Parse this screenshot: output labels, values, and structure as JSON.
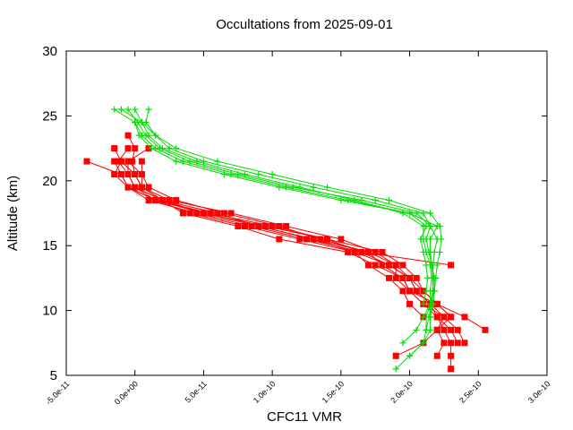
{
  "chart_data": {
    "type": "line",
    "title": "Occultations from 2025-09-01",
    "xlabel": "CFC11 VMR",
    "ylabel": "Altitude (km)",
    "xlim": [
      -5e-11,
      3e-10
    ],
    "ylim": [
      5,
      30
    ],
    "xticks": [
      -5e-11,
      0,
      5e-11,
      1e-10,
      1.5e-10,
      2e-10,
      2.5e-10,
      3e-10
    ],
    "xtick_labels": [
      "-5.0e-11",
      "0.0e+00",
      "5.0e-11",
      "1.0e-10",
      "1.5e-10",
      "2.0e-10",
      "2.5e-10",
      "3.0e-10"
    ],
    "yticks": [
      5,
      10,
      15,
      20,
      25,
      30
    ],
    "ytick_labels": [
      "5",
      "10",
      "15",
      "20",
      "25",
      "30"
    ],
    "grid": false,
    "colors": {
      "red": "#ff0000",
      "green": "#00dd00"
    },
    "series": [
      {
        "color": "red",
        "marker": "square",
        "points": [
          [
            2.3e-10,
            5.5
          ],
          [
            2.3e-10,
            6.5
          ],
          [
            2.3e-10,
            7.5
          ],
          [
            2.25e-10,
            8.5
          ],
          [
            2.2e-10,
            9.5
          ],
          [
            2.15e-10,
            10.5
          ],
          [
            2.05e-10,
            11.5
          ],
          [
            2e-10,
            12.5
          ],
          [
            1.9e-10,
            13.5
          ],
          [
            1.75e-10,
            14.5
          ],
          [
            1.5e-10,
            15.5
          ],
          [
            1.1e-10,
            16.5
          ],
          [
            7e-11,
            17.5
          ],
          [
            2.5e-11,
            18.5
          ],
          [
            5e-12,
            19.5
          ],
          [
            0,
            20.5
          ],
          [
            -2e-12,
            21.5
          ],
          [
            0,
            22.5
          ],
          [
            -5e-12,
            23.5
          ]
        ]
      },
      {
        "color": "red",
        "marker": "square",
        "points": [
          [
            2.35e-10,
            7.5
          ],
          [
            2.3e-10,
            8.5
          ],
          [
            2.2e-10,
            9.5
          ],
          [
            2.1e-10,
            10.5
          ],
          [
            2e-10,
            11.5
          ],
          [
            1.95e-10,
            12.5
          ],
          [
            1.8e-10,
            13.5
          ],
          [
            1.7e-10,
            14.5
          ],
          [
            1.3e-10,
            15.5
          ],
          [
            9e-11,
            16.5
          ],
          [
            6e-11,
            17.5
          ],
          [
            2e-11,
            18.5
          ],
          [
            5e-12,
            19.5
          ],
          [
            0,
            20.5
          ],
          [
            -1e-11,
            21.5
          ]
        ]
      },
      {
        "color": "red",
        "marker": "square",
        "points": [
          [
            1.9e-10,
            6.5
          ],
          [
            2.1e-10,
            7.5
          ],
          [
            2.2e-10,
            8.5
          ],
          [
            2.3e-10,
            9.5
          ],
          [
            2.2e-10,
            10.5
          ],
          [
            2.1e-10,
            11.5
          ],
          [
            2e-10,
            12.5
          ],
          [
            1.85e-10,
            13.5
          ],
          [
            1.6e-10,
            14.5
          ],
          [
            1.2e-10,
            15.5
          ],
          [
            8e-11,
            16.5
          ],
          [
            4e-11,
            17.5
          ],
          [
            1.5e-11,
            18.5
          ],
          [
            0,
            19.5
          ],
          [
            -5e-12,
            20.5
          ],
          [
            -1.2e-11,
            21.5
          ],
          [
            -5e-12,
            22.5
          ]
        ]
      },
      {
        "color": "red",
        "marker": "square",
        "points": [
          [
            2.55e-10,
            8.5
          ],
          [
            2.4e-10,
            9.5
          ],
          [
            2.2e-10,
            10.5
          ],
          [
            2.1e-10,
            11.5
          ],
          [
            2.05e-10,
            12.5
          ],
          [
            1.95e-10,
            13.5
          ],
          [
            1.8e-10,
            14.5
          ],
          [
            1.4e-10,
            15.5
          ],
          [
            1e-10,
            16.5
          ],
          [
            5.5e-11,
            17.5
          ],
          [
            1.5e-11,
            18.5
          ],
          [
            -5e-12,
            19.5
          ],
          [
            -1e-11,
            20.5
          ],
          [
            -1.5e-11,
            21.5
          ]
        ]
      },
      {
        "color": "red",
        "marker": "square",
        "points": [
          [
            2.4e-10,
            7.5
          ],
          [
            2.35e-10,
            8.5
          ],
          [
            2.25e-10,
            9.5
          ],
          [
            2.15e-10,
            10.5
          ],
          [
            2.05e-10,
            11.5
          ],
          [
            2e-10,
            12.5
          ],
          [
            1.85e-10,
            13.5
          ],
          [
            1.65e-10,
            14.5
          ],
          [
            1.25e-10,
            15.5
          ],
          [
            8.5e-11,
            16.5
          ],
          [
            4.5e-11,
            17.5
          ],
          [
            1e-11,
            18.5
          ],
          [
            -5e-12,
            19.5
          ],
          [
            -1e-11,
            20.5
          ],
          [
            -3.5e-11,
            21.5
          ]
        ]
      },
      {
        "color": "red",
        "marker": "square",
        "points": [
          [
            2.2e-10,
            6.5
          ],
          [
            2.25e-10,
            7.5
          ],
          [
            2.2e-10,
            8.5
          ],
          [
            2.25e-10,
            9.5
          ],
          [
            2.1e-10,
            10.5
          ],
          [
            2e-10,
            11.5
          ],
          [
            1.95e-10,
            12.5
          ],
          [
            1.75e-10,
            13.5
          ],
          [
            1.55e-10,
            14.5
          ],
          [
            1.05e-10,
            15.5
          ],
          [
            7.5e-11,
            16.5
          ],
          [
            3.5e-11,
            17.5
          ],
          [
            2e-11,
            18.5
          ],
          [
            5e-12,
            19.5
          ],
          [
            5e-12,
            20.5
          ],
          [
            -5e-12,
            21.5
          ],
          [
            1e-11,
            22.5
          ]
        ]
      },
      {
        "color": "red",
        "marker": "square",
        "points": [
          [
            2.3e-10,
            13.5
          ],
          [
            1.65e-10,
            14.5
          ],
          [
            1.4e-10,
            15.5
          ],
          [
            9.5e-11,
            16.5
          ],
          [
            5e-11,
            17.5
          ],
          [
            1.5e-11,
            18.5
          ],
          [
            -5e-12,
            19.5
          ],
          [
            -1.5e-11,
            20.5
          ],
          [
            -1e-11,
            21.5
          ],
          [
            -1.5e-11,
            22.5
          ]
        ]
      },
      {
        "color": "red",
        "marker": "square",
        "points": [
          [
            2.3e-10,
            9.5
          ],
          [
            2.2e-10,
            10.5
          ],
          [
            2e-10,
            11.5
          ],
          [
            1.9e-10,
            12.5
          ],
          [
            1.9e-10,
            13.5
          ],
          [
            1.7e-10,
            14.5
          ],
          [
            1.35e-10,
            15.5
          ],
          [
            1.05e-10,
            16.5
          ],
          [
            6.5e-11,
            17.5
          ],
          [
            3e-11,
            18.5
          ],
          [
            1e-11,
            19.5
          ],
          [
            5e-12,
            20.5
          ],
          [
            5e-12,
            21.5
          ]
        ]
      },
      {
        "color": "red",
        "marker": "square",
        "points": [
          [
            2.1e-10,
            9.5
          ],
          [
            2e-10,
            10.5
          ],
          [
            1.95e-10,
            11.5
          ],
          [
            1.85e-10,
            12.5
          ],
          [
            1.7e-10,
            13.5
          ],
          [
            1.6e-10,
            14.5
          ],
          [
            1.3e-10,
            15.5
          ],
          [
            9e-11,
            16.5
          ],
          [
            5e-11,
            17.5
          ],
          [
            2e-11,
            18.5
          ],
          [
            0,
            19.5
          ],
          [
            -5e-12,
            20.5
          ],
          [
            -5e-12,
            21.5
          ]
        ]
      },
      {
        "color": "green",
        "marker": "plus",
        "points": [
          [
            1.9e-10,
            5.5
          ],
          [
            2e-10,
            6.5
          ],
          [
            2.1e-10,
            7.5
          ],
          [
            2.15e-10,
            8.5
          ],
          [
            2.15e-10,
            9.5
          ],
          [
            2.15e-10,
            10.5
          ],
          [
            2.18e-10,
            11.5
          ],
          [
            2.18e-10,
            12.5
          ],
          [
            2.16e-10,
            13.5
          ],
          [
            2.15e-10,
            14.5
          ],
          [
            2.15e-10,
            15.5
          ],
          [
            2.2e-10,
            16.5
          ],
          [
            2e-10,
            17.5
          ],
          [
            1.55e-10,
            18.5
          ],
          [
            1.1e-10,
            19.5
          ],
          [
            7e-11,
            20.5
          ],
          [
            3.5e-11,
            21.5
          ],
          [
            1.5e-11,
            22.5
          ],
          [
            5e-12,
            23.5
          ],
          [
            0,
            24.5
          ],
          [
            -1.5e-11,
            25.5
          ]
        ]
      },
      {
        "color": "green",
        "marker": "plus",
        "points": [
          [
            1.95e-10,
            7.5
          ],
          [
            2.05e-10,
            8.5
          ],
          [
            2.1e-10,
            9.5
          ],
          [
            2.15e-10,
            10.5
          ],
          [
            2.15e-10,
            11.5
          ],
          [
            2.16e-10,
            12.5
          ],
          [
            2.15e-10,
            13.5
          ],
          [
            2.12e-10,
            14.5
          ],
          [
            2.1e-10,
            15.5
          ],
          [
            2.1e-10,
            16.5
          ],
          [
            1.95e-10,
            17.5
          ],
          [
            1.6e-10,
            18.5
          ],
          [
            1.2e-10,
            19.5
          ],
          [
            8e-11,
            20.5
          ],
          [
            4.5e-11,
            21.5
          ],
          [
            2e-11,
            22.5
          ],
          [
            1e-11,
            23.5
          ],
          [
            5e-12,
            24.5
          ],
          [
            -1e-11,
            25.5
          ]
        ]
      },
      {
        "color": "green",
        "marker": "plus",
        "points": [
          [
            2e-10,
            6.5
          ],
          [
            2.1e-10,
            7.5
          ],
          [
            2.12e-10,
            8.5
          ],
          [
            2.12e-10,
            9.5
          ],
          [
            2.15e-10,
            10.5
          ],
          [
            2.17e-10,
            11.5
          ],
          [
            2.17e-10,
            12.5
          ],
          [
            2.17e-10,
            13.5
          ],
          [
            2.18e-10,
            14.5
          ],
          [
            2.2e-10,
            15.5
          ],
          [
            2.15e-10,
            16.5
          ],
          [
            2.1e-10,
            17.5
          ],
          [
            1.75e-10,
            18.5
          ],
          [
            1.3e-10,
            19.5
          ],
          [
            9e-11,
            20.5
          ],
          [
            5e-11,
            21.5
          ],
          [
            2.5e-11,
            22.5
          ],
          [
            1.5e-11,
            23.5
          ],
          [
            5e-12,
            24.5
          ],
          [
            0,
            25.5
          ]
        ]
      },
      {
        "color": "green",
        "marker": "plus",
        "points": [
          [
            2.12e-10,
            8.5
          ],
          [
            2.14e-10,
            9.5
          ],
          [
            2.16e-10,
            10.5
          ],
          [
            2.17e-10,
            11.5
          ],
          [
            2.17e-10,
            12.5
          ],
          [
            2.16e-10,
            13.5
          ],
          [
            2.14e-10,
            14.5
          ],
          [
            2.12e-10,
            15.5
          ],
          [
            2.15e-10,
            16.5
          ],
          [
            2.05e-10,
            17.5
          ],
          [
            1.65e-10,
            18.5
          ],
          [
            1.15e-10,
            19.5
          ],
          [
            7.5e-11,
            20.5
          ],
          [
            4e-11,
            21.5
          ],
          [
            1.8e-11,
            22.5
          ],
          [
            8e-12,
            23.5
          ],
          [
            2e-12,
            24.5
          ],
          [
            -5e-12,
            25.5
          ]
        ]
      },
      {
        "color": "green",
        "marker": "plus",
        "points": [
          [
            2.15e-10,
            9.5
          ],
          [
            2.17e-10,
            10.5
          ],
          [
            2.18e-10,
            11.5
          ],
          [
            2.19e-10,
            12.5
          ],
          [
            2.2e-10,
            13.5
          ],
          [
            2.22e-10,
            14.5
          ],
          [
            2.23e-10,
            15.5
          ],
          [
            2.22e-10,
            16.5
          ],
          [
            2.15e-10,
            17.5
          ],
          [
            1.85e-10,
            18.5
          ],
          [
            1.4e-10,
            19.5
          ],
          [
            1e-10,
            20.5
          ],
          [
            6e-11,
            21.5
          ],
          [
            3e-11,
            22.5
          ],
          [
            1.5e-11,
            23.5
          ],
          [
            8e-12,
            24.5
          ],
          [
            1e-11,
            25.5
          ]
        ]
      },
      {
        "color": "green",
        "marker": "plus",
        "points": [
          [
            2.1e-10,
            10.5
          ],
          [
            2.12e-10,
            11.5
          ],
          [
            2.13e-10,
            12.5
          ],
          [
            2.12e-10,
            13.5
          ],
          [
            2.1e-10,
            14.5
          ],
          [
            2.08e-10,
            15.5
          ],
          [
            2.12e-10,
            16.5
          ],
          [
            2e-10,
            17.5
          ],
          [
            1.5e-10,
            18.5
          ],
          [
            1.05e-10,
            19.5
          ],
          [
            6.5e-11,
            20.5
          ],
          [
            3e-11,
            21.5
          ],
          [
            1.2e-11,
            22.5
          ],
          [
            3e-12,
            23.5
          ],
          [
            0,
            24.5
          ]
        ]
      }
    ]
  }
}
